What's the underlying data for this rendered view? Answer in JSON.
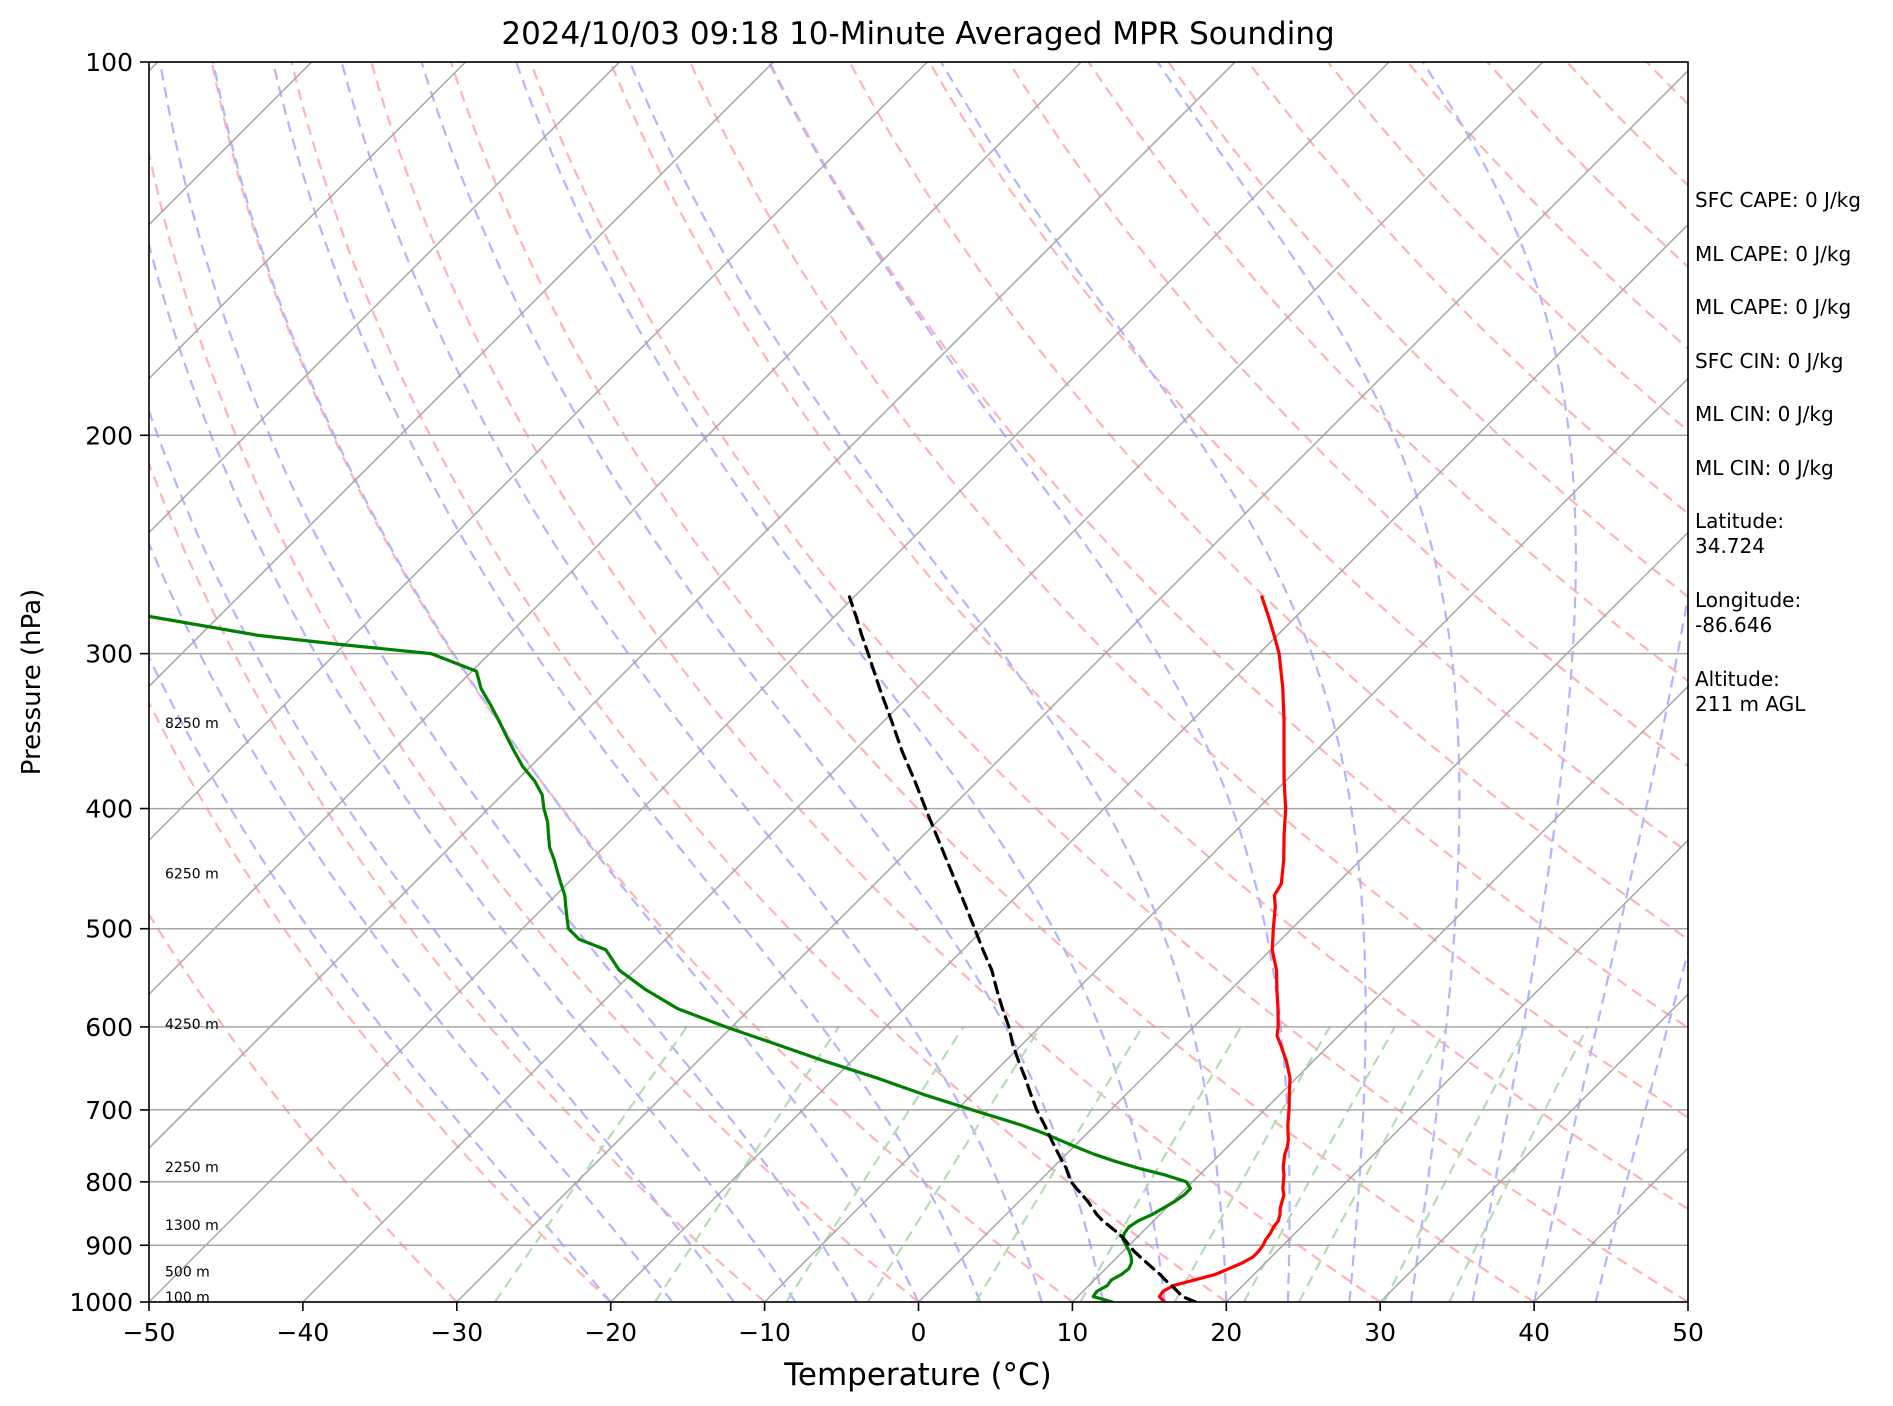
{
  "chart_data": {
    "type": "line",
    "title": "2024/10/03 09:18 10-Minute Averaged MPR Sounding",
    "xlabel": "Temperature (°C)",
    "ylabel": "Pressure (hPa)",
    "xlim": [
      -50,
      50
    ],
    "ylim": [
      1000,
      100
    ],
    "y_scale": "log",
    "skew": 45,
    "x_ticks": [
      -50,
      -40,
      -30,
      -20,
      -10,
      0,
      10,
      20,
      30,
      40,
      50
    ],
    "x_tick_labels": [
      "−50",
      "−40",
      "−30",
      "−20",
      "−10",
      "0",
      "10",
      "20",
      "30",
      "40",
      "50"
    ],
    "y_ticks": [
      100,
      200,
      300,
      400,
      500,
      600,
      700,
      800,
      900,
      1000
    ],
    "y_tick_labels": [
      "100",
      "200",
      "300",
      "400",
      "500",
      "600",
      "700",
      "800",
      "900",
      "1000"
    ],
    "grid": true,
    "height_labels": [
      {
        "text": "100 m",
        "p": 993
      },
      {
        "text": "500 m",
        "p": 947
      },
      {
        "text": "1300 m",
        "p": 868
      },
      {
        "text": "2250 m",
        "p": 780
      },
      {
        "text": "4250 m",
        "p": 598
      },
      {
        "text": "6250 m",
        "p": 452
      },
      {
        "text": "8250 m",
        "p": 342
      }
    ],
    "series": [
      {
        "color": "#ff0000",
        "style": "solid",
        "points": [
          [
            1000,
            16.0
          ],
          [
            990,
            15.3
          ],
          [
            980,
            15.2
          ],
          [
            970,
            15.5
          ],
          [
            960,
            16.5
          ],
          [
            950,
            17.5
          ],
          [
            940,
            18.0
          ],
          [
            930,
            18.5
          ],
          [
            920,
            18.8
          ],
          [
            910,
            18.8
          ],
          [
            900,
            18.7
          ],
          [
            890,
            18.5
          ],
          [
            880,
            18.4
          ],
          [
            870,
            18.2
          ],
          [
            860,
            18.1
          ],
          [
            850,
            17.8
          ],
          [
            840,
            17.4
          ],
          [
            830,
            17.1
          ],
          [
            820,
            16.8
          ],
          [
            810,
            16.3
          ],
          [
            800,
            15.9
          ],
          [
            790,
            15.5
          ],
          [
            780,
            15.0
          ],
          [
            770,
            14.6
          ],
          [
            760,
            14.2
          ],
          [
            750,
            13.9
          ],
          [
            740,
            13.5
          ],
          [
            730,
            13.0
          ],
          [
            720,
            12.5
          ],
          [
            700,
            11.6
          ],
          [
            680,
            10.6
          ],
          [
            660,
            9.6
          ],
          [
            640,
            8.3
          ],
          [
            620,
            6.8
          ],
          [
            610,
            6.0
          ],
          [
            600,
            5.5
          ],
          [
            580,
            4.3
          ],
          [
            560,
            3.0
          ],
          [
            540,
            1.7
          ],
          [
            520,
            0.1
          ],
          [
            500,
            -1.2
          ],
          [
            480,
            -2.5
          ],
          [
            470,
            -3.3
          ],
          [
            460,
            -3.6
          ],
          [
            440,
            -5.0
          ],
          [
            420,
            -6.6
          ],
          [
            400,
            -8.2
          ],
          [
            380,
            -10.1
          ],
          [
            360,
            -12.0
          ],
          [
            340,
            -14.0
          ],
          [
            320,
            -16.2
          ],
          [
            300,
            -18.7
          ],
          [
            290,
            -20.2
          ],
          [
            280,
            -21.8
          ],
          [
            270,
            -23.5
          ]
        ]
      },
      {
        "color": "#008000",
        "style": "solid",
        "points": [
          [
            1000,
            12.6
          ],
          [
            990,
            11.0
          ],
          [
            980,
            10.9
          ],
          [
            970,
            11.2
          ],
          [
            960,
            11.1
          ],
          [
            950,
            11.4
          ],
          [
            940,
            11.5
          ],
          [
            930,
            11.3
          ],
          [
            920,
            10.9
          ],
          [
            910,
            10.4
          ],
          [
            900,
            9.8
          ],
          [
            890,
            9.2
          ],
          [
            880,
            8.9
          ],
          [
            870,
            8.8
          ],
          [
            860,
            9.0
          ],
          [
            850,
            9.5
          ],
          [
            840,
            9.8
          ],
          [
            830,
            10.1
          ],
          [
            820,
            10.3
          ],
          [
            810,
            10.3
          ],
          [
            800,
            9.6
          ],
          [
            790,
            7.8
          ],
          [
            780,
            5.6
          ],
          [
            770,
            3.6
          ],
          [
            760,
            1.8
          ],
          [
            750,
            0.2
          ],
          [
            740,
            -1.4
          ],
          [
            730,
            -3.0
          ],
          [
            720,
            -4.8
          ],
          [
            700,
            -9.0
          ],
          [
            680,
            -13.2
          ],
          [
            660,
            -17.2
          ],
          [
            640,
            -21.6
          ],
          [
            620,
            -25.9
          ],
          [
            600,
            -30.4
          ],
          [
            580,
            -34.7
          ],
          [
            560,
            -38.0
          ],
          [
            540,
            -41.0
          ],
          [
            520,
            -43.2
          ],
          [
            510,
            -45.6
          ],
          [
            500,
            -47.0
          ],
          [
            490,
            -47.8
          ],
          [
            480,
            -48.6
          ],
          [
            470,
            -49.4
          ],
          [
            460,
            -50.4
          ],
          [
            450,
            -51.4
          ],
          [
            440,
            -52.4
          ],
          [
            430,
            -53.5
          ],
          [
            420,
            -54.4
          ],
          [
            410,
            -55.3
          ],
          [
            400,
            -56.4
          ],
          [
            390,
            -57.4
          ],
          [
            380,
            -58.8
          ],
          [
            370,
            -60.5
          ],
          [
            360,
            -62.0
          ],
          [
            350,
            -63.5
          ],
          [
            340,
            -65.0
          ],
          [
            330,
            -66.6
          ],
          [
            320,
            -68.3
          ],
          [
            310,
            -69.7
          ],
          [
            300,
            -73.8
          ],
          [
            295,
            -80.2
          ],
          [
            290,
            -86.2
          ],
          [
            280,
            -94.5
          ]
        ]
      },
      {
        "color": "#000000",
        "style": "dashed",
        "points": [
          [
            1000,
            18.0
          ],
          [
            990,
            16.8
          ],
          [
            980,
            16.1
          ],
          [
            970,
            15.4
          ],
          [
            960,
            14.6
          ],
          [
            950,
            13.9
          ],
          [
            940,
            13.1
          ],
          [
            930,
            12.3
          ],
          [
            920,
            11.5
          ],
          [
            910,
            10.7
          ],
          [
            900,
            10.0
          ],
          [
            890,
            9.3
          ],
          [
            880,
            8.5
          ],
          [
            870,
            7.6
          ],
          [
            860,
            6.7
          ],
          [
            850,
            5.9
          ],
          [
            840,
            5.2
          ],
          [
            830,
            4.5
          ],
          [
            820,
            3.7
          ],
          [
            810,
            2.9
          ],
          [
            800,
            2.1
          ],
          [
            790,
            1.5
          ],
          [
            780,
            0.9
          ],
          [
            770,
            0.2
          ],
          [
            760,
            -0.5
          ],
          [
            750,
            -1.2
          ],
          [
            740,
            -1.9
          ],
          [
            730,
            -2.6
          ],
          [
            720,
            -3.3
          ],
          [
            700,
            -4.8
          ],
          [
            680,
            -6.2
          ],
          [
            660,
            -7.6
          ],
          [
            640,
            -9.1
          ],
          [
            620,
            -10.6
          ],
          [
            600,
            -12.0
          ],
          [
            580,
            -13.6
          ],
          [
            560,
            -15.2
          ],
          [
            540,
            -16.8
          ],
          [
            520,
            -18.7
          ],
          [
            500,
            -20.6
          ],
          [
            480,
            -22.6
          ],
          [
            460,
            -24.7
          ],
          [
            440,
            -26.9
          ],
          [
            420,
            -29.2
          ],
          [
            400,
            -31.6
          ],
          [
            380,
            -34.1
          ],
          [
            360,
            -36.8
          ],
          [
            340,
            -39.5
          ],
          [
            320,
            -42.4
          ],
          [
            300,
            -45.4
          ],
          [
            290,
            -47.0
          ],
          [
            280,
            -48.6
          ],
          [
            270,
            -50.3
          ]
        ]
      }
    ],
    "annotations": [
      {
        "label": "SFC CAPE: 0 J/kg"
      },
      {
        "label": "ML CAPE: 0 J/kg"
      },
      {
        "label": "ML CAPE: 0 J/kg"
      },
      {
        "label": "SFC CIN: 0 J/kg"
      },
      {
        "label": "ML CIN: 0 J/kg"
      },
      {
        "label": "ML CIN: 0 J/kg"
      }
    ],
    "location": {
      "latitude_label": "Latitude:",
      "latitude": "34.724",
      "longitude_label": "Longitude:",
      "longitude": "-86.646",
      "altitude_label": "Altitude:",
      "altitude": "211 m AGL"
    }
  },
  "colors": {
    "temperature": "#ff0000",
    "dewpoint": "#008000",
    "parcel": "#000000",
    "isotherms": "#a6a6a6",
    "isobars": "#a6a6a6",
    "dry_adiabats": "#ffb3b3",
    "moist_adiabats": "#b3b3ff",
    "mixing_ratio": "#b3dcb3"
  }
}
